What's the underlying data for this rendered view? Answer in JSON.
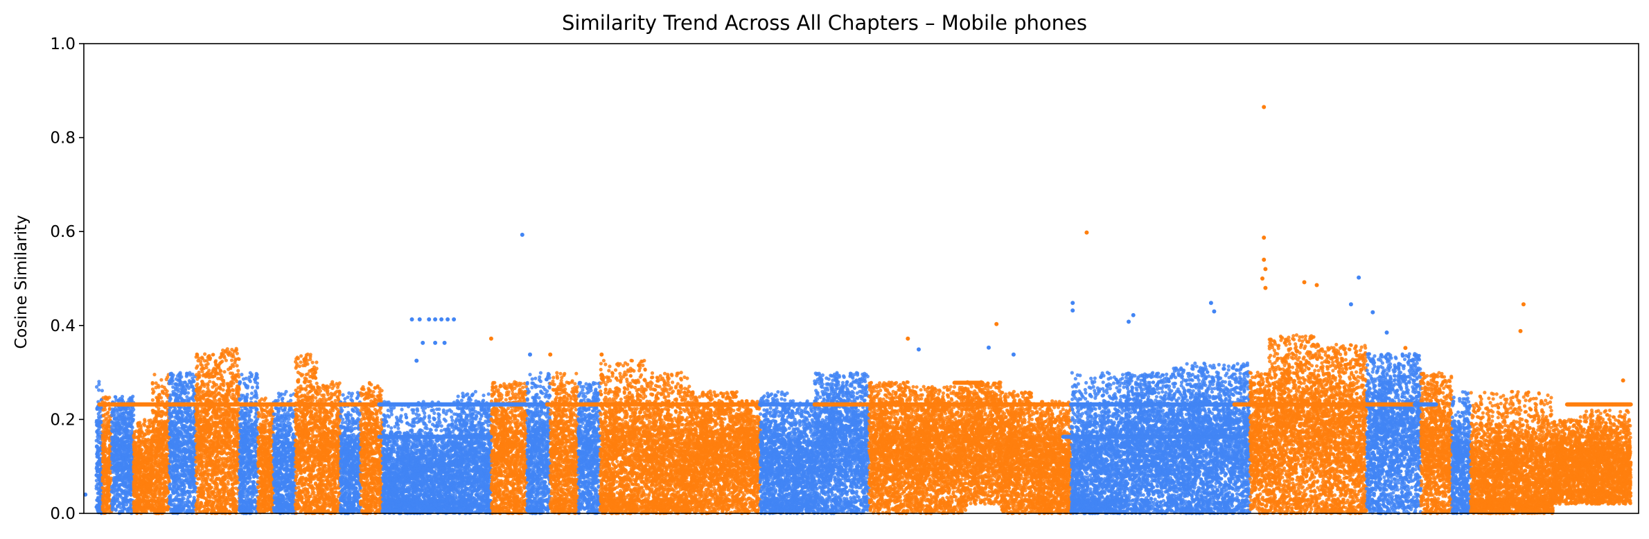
{
  "chart_data": {
    "type": "scatter",
    "title": "Similarity Trend Across All Chapters – Mobile phones",
    "xlabel": "",
    "ylabel": "Cosine Similarity",
    "ylim": [
      0,
      1
    ],
    "xlim": [
      0,
      1000
    ],
    "yticks": [
      "0.0",
      "0.2",
      "0.4",
      "0.6",
      "0.8",
      "1.0"
    ],
    "grid": false,
    "colors": {
      "blue": "#4285f4",
      "orange": "#ff7f0e"
    },
    "chapters": [
      {
        "x0": 8,
        "x1": 12,
        "c": "blue",
        "lo": 0.0,
        "hi": 0.3,
        "center": 0.1
      },
      {
        "x0": 12,
        "x1": 18,
        "c": "orange",
        "lo": 0.0,
        "hi": 0.25,
        "center": 0.1
      },
      {
        "x0": 18,
        "x1": 32,
        "c": "blue",
        "lo": 0.0,
        "hi": 0.25,
        "center": 0.12
      },
      {
        "x0": 32,
        "x1": 44,
        "c": "orange",
        "lo": 0.0,
        "hi": 0.2,
        "center": 0.08
      },
      {
        "x0": 44,
        "x1": 55,
        "c": "orange",
        "lo": 0.0,
        "hi": 0.3,
        "center": 0.12
      },
      {
        "x0": 55,
        "x1": 72,
        "c": "blue",
        "lo": 0.0,
        "hi": 0.3,
        "center": 0.14
      },
      {
        "x0": 72,
        "x1": 88,
        "c": "orange",
        "lo": 0.0,
        "hi": 0.34,
        "center": 0.15
      },
      {
        "x0": 88,
        "x1": 100,
        "c": "orange",
        "lo": 0.0,
        "hi": 0.36,
        "center": 0.15
      },
      {
        "x0": 100,
        "x1": 112,
        "c": "blue",
        "lo": 0.0,
        "hi": 0.3,
        "center": 0.12
      },
      {
        "x0": 112,
        "x1": 122,
        "c": "orange",
        "lo": 0.0,
        "hi": 0.25,
        "center": 0.1
      },
      {
        "x0": 122,
        "x1": 136,
        "c": "blue",
        "lo": 0.0,
        "hi": 0.26,
        "center": 0.1
      },
      {
        "x0": 136,
        "x1": 150,
        "c": "orange",
        "lo": 0.0,
        "hi": 0.34,
        "center": 0.14
      },
      {
        "x0": 150,
        "x1": 165,
        "c": "orange",
        "lo": 0.0,
        "hi": 0.28,
        "center": 0.12
      },
      {
        "x0": 165,
        "x1": 178,
        "c": "blue",
        "lo": 0.0,
        "hi": 0.26,
        "center": 0.1
      },
      {
        "x0": 178,
        "x1": 192,
        "c": "orange",
        "lo": 0.0,
        "hi": 0.28,
        "center": 0.12
      },
      {
        "x0": 192,
        "x1": 238,
        "c": "blue",
        "lo": 0.0,
        "hi": 0.24,
        "center": 0.07
      },
      {
        "x0": 238,
        "x1": 262,
        "c": "blue",
        "lo": 0.0,
        "hi": 0.26,
        "center": 0.1
      },
      {
        "x0": 262,
        "x1": 285,
        "c": "orange",
        "lo": 0.0,
        "hi": 0.28,
        "center": 0.12
      },
      {
        "x0": 285,
        "x1": 300,
        "c": "blue",
        "lo": 0.0,
        "hi": 0.3,
        "center": 0.12
      },
      {
        "x0": 300,
        "x1": 318,
        "c": "orange",
        "lo": 0.0,
        "hi": 0.3,
        "center": 0.12
      },
      {
        "x0": 318,
        "x1": 332,
        "c": "blue",
        "lo": 0.0,
        "hi": 0.28,
        "center": 0.12
      },
      {
        "x0": 332,
        "x1": 362,
        "c": "orange",
        "lo": 0.0,
        "hi": 0.33,
        "center": 0.12
      },
      {
        "x0": 362,
        "x1": 390,
        "c": "orange",
        "lo": 0.0,
        "hi": 0.3,
        "center": 0.11
      },
      {
        "x0": 390,
        "x1": 420,
        "c": "orange",
        "lo": 0.0,
        "hi": 0.26,
        "center": 0.12
      },
      {
        "x0": 420,
        "x1": 435,
        "c": "orange",
        "lo": 0.0,
        "hi": 0.24,
        "center": 0.12
      },
      {
        "x0": 435,
        "x1": 455,
        "c": "blue",
        "lo": 0.0,
        "hi": 0.26,
        "center": 0.1
      },
      {
        "x0": 455,
        "x1": 470,
        "c": "blue",
        "lo": 0.0,
        "hi": 0.24,
        "center": 0.09
      },
      {
        "x0": 470,
        "x1": 505,
        "c": "blue",
        "lo": 0.0,
        "hi": 0.3,
        "center": 0.14
      },
      {
        "x0": 505,
        "x1": 530,
        "c": "orange",
        "lo": 0.0,
        "hi": 0.28,
        "center": 0.13
      },
      {
        "x0": 530,
        "x1": 568,
        "c": "orange",
        "lo": 0.0,
        "hi": 0.27,
        "center": 0.13
      },
      {
        "x0": 568,
        "x1": 590,
        "c": "orange",
        "lo": 0.02,
        "hi": 0.28,
        "center": 0.15
      },
      {
        "x0": 590,
        "x1": 610,
        "c": "orange",
        "lo": 0.0,
        "hi": 0.26,
        "center": 0.12
      },
      {
        "x0": 610,
        "x1": 635,
        "c": "orange",
        "lo": 0.0,
        "hi": 0.24,
        "center": 0.1
      },
      {
        "x0": 635,
        "x1": 670,
        "c": "blue",
        "lo": 0.0,
        "hi": 0.3,
        "center": 0.1
      },
      {
        "x0": 670,
        "x1": 700,
        "c": "blue",
        "lo": 0.0,
        "hi": 0.3,
        "center": 0.14
      },
      {
        "x0": 700,
        "x1": 750,
        "c": "blue",
        "lo": 0.0,
        "hi": 0.32,
        "center": 0.14
      },
      {
        "x0": 750,
        "x1": 762,
        "c": "orange",
        "lo": 0.0,
        "hi": 0.3,
        "center": 0.15
      },
      {
        "x0": 762,
        "x1": 792,
        "c": "orange",
        "lo": 0.0,
        "hi": 0.38,
        "center": 0.17
      },
      {
        "x0": 792,
        "x1": 825,
        "c": "orange",
        "lo": 0.0,
        "hi": 0.36,
        "center": 0.16
      },
      {
        "x0": 825,
        "x1": 860,
        "c": "blue",
        "lo": 0.0,
        "hi": 0.34,
        "center": 0.16
      },
      {
        "x0": 860,
        "x1": 880,
        "c": "orange",
        "lo": 0.0,
        "hi": 0.3,
        "center": 0.14
      },
      {
        "x0": 880,
        "x1": 892,
        "c": "blue",
        "lo": 0.0,
        "hi": 0.26,
        "center": 0.1
      },
      {
        "x0": 892,
        "x1": 945,
        "c": "orange",
        "lo": 0.0,
        "hi": 0.26,
        "center": 0.08
      },
      {
        "x0": 945,
        "x1": 962,
        "c": "orange",
        "lo": 0.02,
        "hi": 0.2,
        "center": 0.1
      },
      {
        "x0": 962,
        "x1": 995,
        "c": "orange",
        "lo": 0.02,
        "hi": 0.22,
        "center": 0.1
      }
    ],
    "bands": [
      {
        "x0": 10,
        "x1": 190,
        "y": 0.232,
        "c": "orange"
      },
      {
        "x0": 190,
        "x1": 298,
        "y": 0.232,
        "c": "blue"
      },
      {
        "x0": 298,
        "x1": 435,
        "y": 0.232,
        "c": "orange"
      },
      {
        "x0": 435,
        "x1": 470,
        "y": 0.232,
        "c": "blue"
      },
      {
        "x0": 470,
        "x1": 635,
        "y": 0.232,
        "c": "orange"
      },
      {
        "x0": 635,
        "x1": 740,
        "y": 0.232,
        "c": "blue"
      },
      {
        "x0": 740,
        "x1": 856,
        "y": 0.232,
        "c": "orange"
      },
      {
        "x0": 856,
        "x1": 870,
        "y": 0.232,
        "c": "blue"
      },
      {
        "x0": 954,
        "x1": 995,
        "y": 0.232,
        "c": "orange"
      },
      {
        "x0": 190,
        "x1": 262,
        "y": 0.163,
        "c": "blue"
      },
      {
        "x0": 560,
        "x1": 578,
        "y": 0.278,
        "c": "orange"
      },
      {
        "x0": 630,
        "x1": 740,
        "y": 0.163,
        "c": "blue"
      }
    ],
    "outliers": [
      {
        "x": 1,
        "y": 0.04,
        "c": "blue"
      },
      {
        "x": 211,
        "y": 0.413,
        "c": "blue"
      },
      {
        "x": 216,
        "y": 0.413,
        "c": "blue"
      },
      {
        "x": 222,
        "y": 0.413,
        "c": "blue"
      },
      {
        "x": 226,
        "y": 0.413,
        "c": "blue"
      },
      {
        "x": 230,
        "y": 0.413,
        "c": "blue"
      },
      {
        "x": 234,
        "y": 0.413,
        "c": "blue"
      },
      {
        "x": 238,
        "y": 0.413,
        "c": "blue"
      },
      {
        "x": 218,
        "y": 0.363,
        "c": "blue"
      },
      {
        "x": 226,
        "y": 0.363,
        "c": "blue"
      },
      {
        "x": 232,
        "y": 0.363,
        "c": "blue"
      },
      {
        "x": 214,
        "y": 0.325,
        "c": "blue"
      },
      {
        "x": 262,
        "y": 0.372,
        "c": "orange"
      },
      {
        "x": 282,
        "y": 0.593,
        "c": "blue"
      },
      {
        "x": 287,
        "y": 0.338,
        "c": "blue"
      },
      {
        "x": 300,
        "y": 0.338,
        "c": "orange"
      },
      {
        "x": 333,
        "y": 0.338,
        "c": "orange"
      },
      {
        "x": 530,
        "y": 0.372,
        "c": "orange"
      },
      {
        "x": 537,
        "y": 0.349,
        "c": "blue"
      },
      {
        "x": 582,
        "y": 0.353,
        "c": "blue"
      },
      {
        "x": 587,
        "y": 0.403,
        "c": "orange"
      },
      {
        "x": 598,
        "y": 0.338,
        "c": "blue"
      },
      {
        "x": 636,
        "y": 0.448,
        "c": "blue"
      },
      {
        "x": 636,
        "y": 0.432,
        "c": "blue"
      },
      {
        "x": 645,
        "y": 0.598,
        "c": "orange"
      },
      {
        "x": 672,
        "y": 0.408,
        "c": "blue"
      },
      {
        "x": 675,
        "y": 0.422,
        "c": "blue"
      },
      {
        "x": 725,
        "y": 0.448,
        "c": "blue"
      },
      {
        "x": 727,
        "y": 0.43,
        "c": "blue"
      },
      {
        "x": 759,
        "y": 0.865,
        "c": "orange"
      },
      {
        "x": 759,
        "y": 0.587,
        "c": "orange"
      },
      {
        "x": 759,
        "y": 0.54,
        "c": "orange"
      },
      {
        "x": 760,
        "y": 0.52,
        "c": "orange"
      },
      {
        "x": 758,
        "y": 0.5,
        "c": "orange"
      },
      {
        "x": 760,
        "y": 0.48,
        "c": "orange"
      },
      {
        "x": 785,
        "y": 0.492,
        "c": "orange"
      },
      {
        "x": 793,
        "y": 0.486,
        "c": "orange"
      },
      {
        "x": 820,
        "y": 0.502,
        "c": "blue"
      },
      {
        "x": 815,
        "y": 0.445,
        "c": "blue"
      },
      {
        "x": 829,
        "y": 0.428,
        "c": "blue"
      },
      {
        "x": 838,
        "y": 0.385,
        "c": "blue"
      },
      {
        "x": 850,
        "y": 0.352,
        "c": "orange"
      },
      {
        "x": 926,
        "y": 0.445,
        "c": "orange"
      },
      {
        "x": 924,
        "y": 0.388,
        "c": "orange"
      },
      {
        "x": 990,
        "y": 0.283,
        "c": "orange"
      }
    ]
  }
}
